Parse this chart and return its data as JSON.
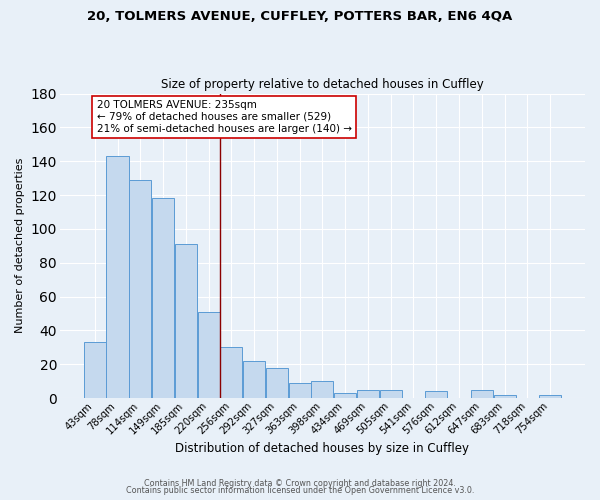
{
  "title_line1": "20, TOLMERS AVENUE, CUFFLEY, POTTERS BAR, EN6 4QA",
  "title_line2": "Size of property relative to detached houses in Cuffley",
  "xlabel": "Distribution of detached houses by size in Cuffley",
  "ylabel": "Number of detached properties",
  "bar_labels": [
    "43sqm",
    "78sqm",
    "114sqm",
    "149sqm",
    "185sqm",
    "220sqm",
    "256sqm",
    "292sqm",
    "327sqm",
    "363sqm",
    "398sqm",
    "434sqm",
    "469sqm",
    "505sqm",
    "541sqm",
    "576sqm",
    "612sqm",
    "647sqm",
    "683sqm",
    "718sqm",
    "754sqm"
  ],
  "bar_values": [
    33,
    143,
    129,
    118,
    91,
    51,
    30,
    22,
    18,
    9,
    10,
    3,
    5,
    5,
    0,
    4,
    0,
    5,
    2,
    0,
    2
  ],
  "bar_color": "#c5d9ee",
  "bar_edge_color": "#5b9bd5",
  "bg_color": "#e8f0f8",
  "grid_color": "#d0d8e4",
  "vline_x": 5.5,
  "vline_color": "#8b0000",
  "annotation_title": "20 TOLMERS AVENUE: 235sqm",
  "annotation_line1": "← 79% of detached houses are smaller (529)",
  "annotation_line2": "21% of semi-detached houses are larger (140) →",
  "annotation_box_color": "#ffffff",
  "annotation_box_edge": "#cc0000",
  "ylim": [
    0,
    180
  ],
  "yticks": [
    0,
    20,
    40,
    60,
    80,
    100,
    120,
    140,
    160,
    180
  ],
  "footer_line1": "Contains HM Land Registry data © Crown copyright and database right 2024.",
  "footer_line2": "Contains public sector information licensed under the Open Government Licence v3.0."
}
